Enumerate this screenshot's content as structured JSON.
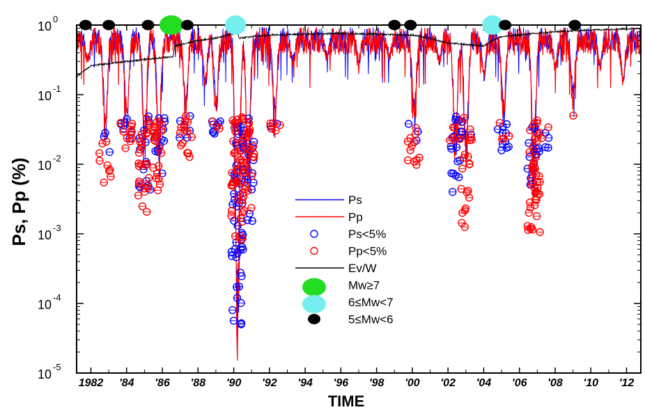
{
  "chart_data": {
    "type": "scatter",
    "title": "",
    "xlabel": "TIME",
    "ylabel": "Ps, Pp (%)",
    "yscale": "log",
    "xlim": [
      1981.2,
      2012.8
    ],
    "ylim": [
      1e-05,
      1
    ],
    "y_ticks": [
      {
        "base": "10",
        "exp": "0"
      },
      {
        "base": "10",
        "exp": "-1"
      },
      {
        "base": "10",
        "exp": "-2"
      },
      {
        "base": "10",
        "exp": "-3"
      },
      {
        "base": "10",
        "exp": "-4"
      },
      {
        "base": "10",
        "exp": "-5"
      }
    ],
    "x_ticks": [
      {
        "value": 1982,
        "label": "1982"
      },
      {
        "value": 1984,
        "label": "'84"
      },
      {
        "value": 1986,
        "label": "'86"
      },
      {
        "value": 1988,
        "label": "'88"
      },
      {
        "value": 1990,
        "label": "'90"
      },
      {
        "value": 1992,
        "label": "'92"
      },
      {
        "value": 1994,
        "label": "'94"
      },
      {
        "value": 1996,
        "label": "'96"
      },
      {
        "value": 1998,
        "label": "'98"
      },
      {
        "value": 2000,
        "label": "'00"
      },
      {
        "value": 2002,
        "label": "'02"
      },
      {
        "value": 2004,
        "label": "'04"
      },
      {
        "value": 2006,
        "label": "'06"
      },
      {
        "value": 2008,
        "label": "'08"
      },
      {
        "value": 2010,
        "label": "'10"
      },
      {
        "value": 2012,
        "label": "'12"
      }
    ],
    "legend": [
      {
        "label": "Ps",
        "kind": "line",
        "color": "#0000ff"
      },
      {
        "label": "Pp",
        "kind": "line",
        "color": "#ff0000"
      },
      {
        "label": "Ps<5%",
        "kind": "circle",
        "color": "#0000ff"
      },
      {
        "label": "Pp<5%",
        "kind": "circle",
        "color": "#ff0000"
      },
      {
        "label": "Ev/W",
        "kind": "line",
        "color": "#000000"
      },
      {
        "label": "Mw≥7",
        "kind": "big-dot",
        "color": "#22dd22"
      },
      {
        "label": "6≤Mw<7",
        "kind": "big-dot",
        "color": "#77eeee"
      },
      {
        "label": "5≤Mw<6",
        "kind": "dot",
        "color": "#000000"
      }
    ],
    "legend_position": "center",
    "earthquakes": [
      {
        "year": 1981.7,
        "class": "5≤Mw<6"
      },
      {
        "year": 1983.0,
        "class": "5≤Mw<6"
      },
      {
        "year": 1985.2,
        "class": "5≤Mw<6"
      },
      {
        "year": 1986.5,
        "class": "Mw≥7"
      },
      {
        "year": 1987.4,
        "class": "5≤Mw<6"
      },
      {
        "year": 1990.1,
        "class": "6≤Mw<7"
      },
      {
        "year": 1999.0,
        "class": "5≤Mw<6"
      },
      {
        "year": 1999.9,
        "class": "5≤Mw<6"
      },
      {
        "year": 2004.5,
        "class": "6≤Mw<7"
      },
      {
        "year": 2005.2,
        "class": "5≤Mw<6"
      },
      {
        "year": 2009.1,
        "class": "5≤Mw<6"
      }
    ],
    "ev_w_series": {
      "name": "Ev/W",
      "x": [
        1981.2,
        1982.0,
        1983.0,
        1984.0,
        1985.0,
        1986.0,
        1986.6,
        1986.7,
        1988.0,
        1989.0,
        1990.0,
        1990.2,
        1990.3,
        1992.0,
        1994.0,
        1996.0,
        1998.0,
        2000.0,
        2002.0,
        2004.0,
        2004.6,
        2005.0,
        2006.0,
        2008.0,
        2010.0,
        2012.8
      ],
      "y": [
        0.18,
        0.26,
        0.28,
        0.3,
        0.32,
        0.34,
        0.35,
        0.5,
        0.6,
        0.65,
        0.75,
        0.8,
        0.65,
        0.72,
        0.74,
        0.76,
        0.74,
        0.72,
        0.55,
        0.5,
        0.62,
        0.68,
        0.72,
        0.8,
        0.85,
        0.9
      ]
    },
    "clusters": [
      {
        "center": 1982.8,
        "low_pp": 0.004,
        "low_ps": 0.01,
        "high": 0.03,
        "n_pp": 9,
        "n_ps": 3
      },
      {
        "center": 1984.0,
        "low_pp": 0.015,
        "low_ps": 0.02,
        "high": 0.045,
        "n_pp": 12,
        "n_ps": 6
      },
      {
        "center": 1985.0,
        "low_pp": 0.002,
        "low_ps": 0.004,
        "high": 0.05,
        "n_pp": 26,
        "n_ps": 14
      },
      {
        "center": 1985.8,
        "low_pp": 0.004,
        "low_ps": 0.006,
        "high": 0.05,
        "n_pp": 22,
        "n_ps": 12
      },
      {
        "center": 1987.3,
        "low_pp": 0.012,
        "low_ps": 0.02,
        "high": 0.05,
        "n_pp": 14,
        "n_ps": 6
      },
      {
        "center": 1989.0,
        "low_pp": 0.03,
        "low_ps": 0.025,
        "high": 0.045,
        "n_pp": 3,
        "n_ps": 8
      },
      {
        "center": 1990.2,
        "low_pp": 0.0008,
        "low_ps": 4e-05,
        "high": 0.05,
        "n_pp": 45,
        "n_ps": 50
      },
      {
        "center": 1990.8,
        "low_pp": 0.002,
        "low_ps": 0.0008,
        "high": 0.05,
        "n_pp": 30,
        "n_ps": 20
      },
      {
        "center": 1992.3,
        "low_pp": 0.025,
        "low_ps": 0.03,
        "high": 0.04,
        "n_pp": 6,
        "n_ps": 2
      },
      {
        "center": 2000.1,
        "low_pp": 0.009,
        "low_ps": 0.02,
        "high": 0.05,
        "n_pp": 12,
        "n_ps": 3
      },
      {
        "center": 2002.4,
        "low_pp": 0.02,
        "low_ps": 0.004,
        "high": 0.05,
        "n_pp": 8,
        "n_ps": 18
      },
      {
        "center": 2003.0,
        "low_pp": 0.001,
        "low_ps": 0.02,
        "high": 0.05,
        "n_pp": 20,
        "n_ps": 4
      },
      {
        "center": 2005.1,
        "low_pp": 0.02,
        "low_ps": 0.015,
        "high": 0.04,
        "n_pp": 4,
        "n_ps": 10
      },
      {
        "center": 2006.8,
        "low_pp": 0.001,
        "low_ps": 0.003,
        "high": 0.05,
        "n_pp": 40,
        "n_ps": 20
      },
      {
        "center": 2007.3,
        "low_pp": 0.02,
        "low_ps": 0.015,
        "high": 0.04,
        "n_pp": 5,
        "n_ps": 5
      },
      {
        "center": 2009.0,
        "low_pp": 0.05,
        "low_ps": 0.05,
        "high": 0.05,
        "n_pp": 1,
        "n_ps": 0
      }
    ],
    "dips": [
      {
        "year": 1981.8,
        "min": 0.25
      },
      {
        "year": 1982.8,
        "min": 0.02
      },
      {
        "year": 1984.0,
        "min": 0.03
      },
      {
        "year": 1985.0,
        "min": 0.01
      },
      {
        "year": 1985.8,
        "min": 0.01
      },
      {
        "year": 1987.3,
        "min": 0.04
      },
      {
        "year": 1988.4,
        "min": 0.12
      },
      {
        "year": 1989.0,
        "min": 0.04
      },
      {
        "year": 1990.2,
        "min": 1e-05
      },
      {
        "year": 1990.8,
        "min": 0.004
      },
      {
        "year": 1992.3,
        "min": 0.03
      },
      {
        "year": 1993.3,
        "min": 0.25
      },
      {
        "year": 1995.2,
        "min": 0.3
      },
      {
        "year": 1997.0,
        "min": 0.25
      },
      {
        "year": 1998.7,
        "min": 0.3
      },
      {
        "year": 2000.1,
        "min": 0.03
      },
      {
        "year": 2001.5,
        "min": 0.25
      },
      {
        "year": 2002.4,
        "min": 0.01
      },
      {
        "year": 2003.0,
        "min": 0.005
      },
      {
        "year": 2004.0,
        "min": 0.15
      },
      {
        "year": 2005.1,
        "min": 0.03
      },
      {
        "year": 2006.8,
        "min": 0.005
      },
      {
        "year": 2008.0,
        "min": 0.2
      },
      {
        "year": 2009.0,
        "min": 0.06
      },
      {
        "year": 2010.5,
        "min": 0.2
      },
      {
        "year": 2011.8,
        "min": 0.12
      }
    ],
    "grid": false
  }
}
